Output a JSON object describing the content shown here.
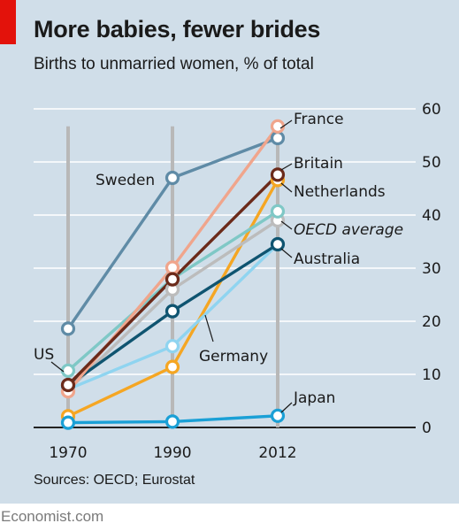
{
  "header": {
    "title": "More babies, fewer brides",
    "subtitle": "Births to unmarried women, % of total"
  },
  "footer": {
    "source": "Sources: OECD; Eurostat",
    "brand": "Economist.com"
  },
  "colors": {
    "background": "#d0dee9",
    "accent": "#e3120b",
    "grid": "#ffffff",
    "guide": "#b8b8b8"
  },
  "chart_data": {
    "type": "line",
    "title": "More babies, fewer brides",
    "subtitle": "Births to unmarried women, % of total",
    "x": [
      "1970",
      "1990",
      "2012"
    ],
    "ylim": [
      0,
      60
    ],
    "yticks": [
      0,
      10,
      20,
      30,
      40,
      50,
      60
    ],
    "y_axis_side": "right",
    "grid": true,
    "series": [
      {
        "name": "Sweden",
        "color": "#5f8ba6",
        "values": [
          18.6,
          47.0,
          54.5
        ]
      },
      {
        "name": "Netherlands",
        "color": "#f5a623",
        "values": [
          2.1,
          11.4,
          46.6
        ]
      },
      {
        "name": "OECD average",
        "color": "#bcbcbc",
        "values": [
          7.0,
          26.0,
          39.0
        ]
      },
      {
        "name": "US",
        "color": "#7fc8c6",
        "values": [
          10.7,
          28.0,
          40.7
        ]
      },
      {
        "name": "Germany",
        "color": "#8fd4f0",
        "values": [
          7.2,
          15.3,
          34.5
        ]
      },
      {
        "name": "Australia",
        "color": "#0f5470",
        "values": [
          7.9,
          21.9,
          34.5
        ]
      },
      {
        "name": "France",
        "color": "#f0a58c",
        "values": [
          6.8,
          30.1,
          56.7
        ]
      },
      {
        "name": "Britain",
        "color": "#6b2a1a",
        "values": [
          8.0,
          27.9,
          47.6
        ]
      },
      {
        "name": "Japan",
        "color": "#1aa0d6",
        "values": [
          0.9,
          1.1,
          2.2
        ]
      }
    ]
  }
}
